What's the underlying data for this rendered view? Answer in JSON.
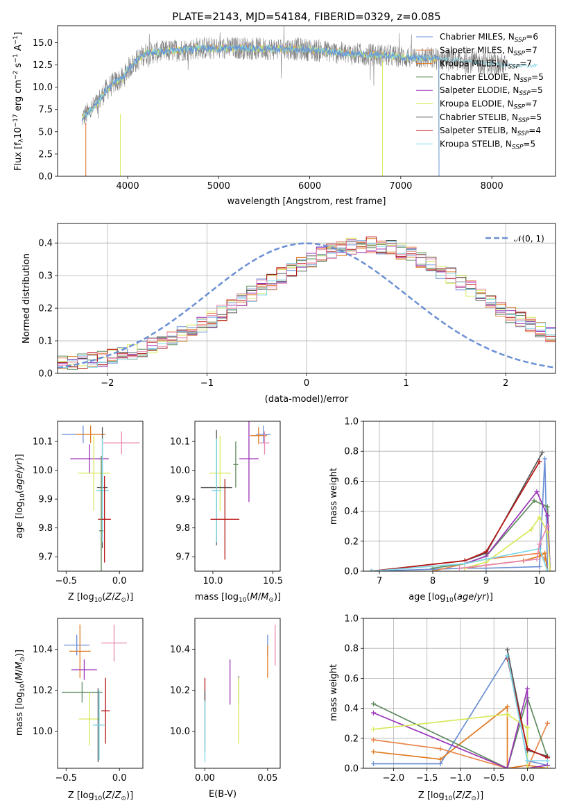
{
  "figure": {
    "title": "PLATE=2143, MJD=54184, FIBERID=0329, z=0.085",
    "colors": {
      "Chabrier MILES": "#6a8fd4",
      "Salpeter MILES": "#e8864a",
      "Kroupa MILES": "#e07b20",
      "Chabrier ELODIE": "#5e8a5e",
      "Salpeter ELODIE": "#9a33b8",
      "Kroupa ELODIE": "#d8e85a",
      "Chabrier STELIB": "#555555",
      "Salpeter STELIB": "#b81414",
      "Kroupa STELIB": "#7fd8e8",
      "data": "#808080",
      "gaussian": "#6a8fd4",
      "extra_pink": "#e889b0"
    }
  },
  "chart_data": [
    {
      "id": "spectrum",
      "type": "line",
      "title": "PLATE=2143, MJD=54184, FIBERID=0329, z=0.085",
      "xlabel": "wavelength [Angstrom, rest frame]",
      "ylabel": "Flux [f_λ 10^-17 erg cm^-2 s^-1 A^-1]",
      "xlim": [
        3230,
        8700
      ],
      "ylim": [
        0,
        16.9
      ],
      "xticks": [
        "4000",
        "5000",
        "6000",
        "7000",
        "8000"
      ],
      "yticks": [
        "0.0",
        "2.5",
        "5.0",
        "7.5",
        "10.0",
        "12.5",
        "15.0"
      ],
      "grid": false,
      "legend_position": "top-right",
      "legend": [
        {
          "name": "Chabrier MILES",
          "nssp": "6"
        },
        {
          "name": "Salpeter MILES",
          "nssp": "7"
        },
        {
          "name": "Kroupa MILES",
          "nssp": "7"
        },
        {
          "name": "Chabrier ELODIE",
          "nssp": "5"
        },
        {
          "name": "Salpeter ELODIE",
          "nssp": "5"
        },
        {
          "name": "Kroupa ELODIE",
          "nssp": "7"
        },
        {
          "name": "Chabrier STELIB",
          "nssp": "5"
        },
        {
          "name": "Salpeter STELIB",
          "nssp": "4"
        },
        {
          "name": "Kroupa STELIB",
          "nssp": "5"
        }
      ],
      "model_continuum": {
        "x": [
          3500,
          3550,
          3650,
          3750,
          3850,
          3950,
          4000,
          4100,
          4200,
          4400,
          4600,
          4800,
          5000,
          5200,
          5500,
          5800,
          6000,
          6200,
          6500,
          6800,
          7000,
          7200,
          7400,
          7600,
          7800,
          8000,
          8200
        ],
        "y": [
          6.5,
          7.0,
          8.0,
          9.5,
          10.5,
          11.0,
          12.0,
          13.0,
          13.8,
          14.0,
          14.2,
          14.4,
          14.3,
          14.4,
          14.3,
          14.3,
          14.2,
          14.0,
          13.7,
          13.6,
          13.4,
          13.3,
          13.2,
          13.0,
          12.8,
          12.6,
          12.4
        ]
      }
    },
    {
      "id": "residual_histogram",
      "type": "line",
      "xlabel": "(data-model)/error",
      "ylabel": "Normed distribution",
      "xlim": [
        -2.5,
        2.5
      ],
      "ylim": [
        0,
        0.46
      ],
      "xticks": [
        "−2",
        "−1",
        "0",
        "1",
        "2"
      ],
      "yticks": [
        "0.0",
        "0.1",
        "0.2",
        "0.3",
        "0.4"
      ],
      "grid": true,
      "legend_position": "top-right",
      "gaussian_label": "𝒩(0, 1)",
      "bin_width": 0.1,
      "bin_start": -2.5,
      "envelope": [
        0.03,
        0.03,
        0.035,
        0.04,
        0.045,
        0.05,
        0.06,
        0.065,
        0.075,
        0.085,
        0.095,
        0.105,
        0.12,
        0.135,
        0.15,
        0.165,
        0.185,
        0.205,
        0.225,
        0.245,
        0.265,
        0.28,
        0.3,
        0.315,
        0.335,
        0.35,
        0.365,
        0.375,
        0.385,
        0.39,
        0.395,
        0.395,
        0.39,
        0.385,
        0.375,
        0.365,
        0.35,
        0.335,
        0.315,
        0.3,
        0.28,
        0.26,
        0.24,
        0.22,
        0.2,
        0.18,
        0.165,
        0.15,
        0.135,
        0.12
      ]
    },
    {
      "id": "age_vs_metallicity",
      "type": "scatter",
      "xlabel": "Z [log10(Z/Z⊙)]",
      "ylabel": "age [log10(age/yr)]",
      "xlim": [
        -0.58,
        0.22
      ],
      "ylim": [
        9.65,
        10.17
      ],
      "xticks": [
        "−0.5",
        "0.0"
      ],
      "yticks": [
        "9.7",
        "9.8",
        "9.9",
        "10.0",
        "10.1"
      ],
      "points": [
        {
          "series": "Chabrier MILES",
          "x": -0.34,
          "y": 10.125,
          "xerr": 0.2,
          "yerr": 0.03
        },
        {
          "series": "Kroupa MILES",
          "x": -0.27,
          "y": 10.125,
          "xerr": 0.14,
          "yerr": 0.03
        },
        {
          "series": "extra_pink",
          "x": 0.02,
          "y": 10.095,
          "xerr": 0.17,
          "yerr": 0.04
        },
        {
          "series": "Salpeter ELODIE",
          "x": -0.28,
          "y": 10.04,
          "xerr": 0.18,
          "yerr": 0.05
        },
        {
          "series": "Kroupa ELODIE",
          "x": -0.24,
          "y": 9.99,
          "xerr": 0.15,
          "yerr": 0.13
        },
        {
          "series": "Chabrier STELIB",
          "x": -0.16,
          "y": 9.94,
          "xerr": 0.05,
          "yerr": 0.21
        },
        {
          "series": "Kroupa STELIB",
          "x": -0.16,
          "y": 9.93,
          "xerr": 0.06,
          "yerr": 0.18
        },
        {
          "series": "Salpeter STELIB",
          "x": -0.14,
          "y": 9.83,
          "xerr": 0.06,
          "yerr": 0.15
        },
        {
          "series": "Chabrier ELODIE",
          "x": -0.17,
          "y": 9.79,
          "xerr": 0.02,
          "yerr": 0.26
        }
      ]
    },
    {
      "id": "age_vs_mass",
      "type": "scatter",
      "xlabel": "mass [log10(M/M⊙)]",
      "ylabel": "",
      "xlim": [
        9.85,
        10.56
      ],
      "ylim": [
        9.65,
        10.17
      ],
      "xticks": [
        "10.0",
        "10.5"
      ],
      "yticks": [
        "9.7",
        "9.8",
        "9.9",
        "10.0",
        "10.1"
      ],
      "points": [
        {
          "series": "Chabrier MILES",
          "x": 10.42,
          "y": 10.125,
          "xerr": 0.06,
          "yerr": 0.03
        },
        {
          "series": "Kroupa MILES",
          "x": 10.38,
          "y": 10.12,
          "xerr": 0.07,
          "yerr": 0.03
        },
        {
          "series": "extra_pink",
          "x": 10.43,
          "y": 10.095,
          "xerr": 0.04,
          "yerr": 0.04
        },
        {
          "series": "Salpeter ELODIE",
          "x": 10.3,
          "y": 10.04,
          "xerr": 0.08,
          "yerr": 0.15
        },
        {
          "series": "Chabrier ELODIE",
          "x": 10.19,
          "y": 10.02,
          "xerr": 0.02,
          "yerr": 0.08
        },
        {
          "series": "Kroupa ELODIE",
          "x": 10.06,
          "y": 9.99,
          "xerr": 0.09,
          "yerr": 0.13
        },
        {
          "series": "Chabrier STELIB",
          "x": 10.03,
          "y": 9.94,
          "xerr": 0.13,
          "yerr": 0.2
        },
        {
          "series": "Kroupa STELIB",
          "x": 10.03,
          "y": 9.93,
          "xerr": 0.04,
          "yerr": 0.18
        },
        {
          "series": "Salpeter STELIB",
          "x": 10.1,
          "y": 9.83,
          "xerr": 0.12,
          "yerr": 0.14
        }
      ]
    },
    {
      "id": "mass_weight_vs_age",
      "type": "line",
      "xlabel": "age [log10(age/yr)]",
      "ylabel": "mass weight",
      "xlim": [
        6.7,
        10.3
      ],
      "ylim": [
        0,
        1.0
      ],
      "xticks": [
        "7",
        "8",
        "9",
        "10"
      ],
      "yticks": [
        "0.0",
        "0.2",
        "0.4",
        "0.6",
        "0.8",
        "1.0"
      ],
      "grid": true,
      "series": [
        {
          "name": "Chabrier MILES",
          "x": [
            6.85,
            8.6,
            9.0,
            10.0,
            10.1,
            10.15
          ],
          "y": [
            0.0,
            0.02,
            0.02,
            0.03,
            0.75,
            0.0
          ]
        },
        {
          "name": "Salpeter MILES",
          "x": [
            8.0,
            8.6,
            9.0,
            10.0,
            10.1
          ],
          "y": [
            0.0,
            0.05,
            0.08,
            0.12,
            0.08
          ]
        },
        {
          "name": "Kroupa MILES",
          "x": [
            8.6,
            9.0,
            9.7,
            10.0,
            10.1,
            10.15
          ],
          "y": [
            0.02,
            0.04,
            0.07,
            0.1,
            0.12,
            0.0
          ]
        },
        {
          "name": "Chabrier ELODIE",
          "x": [
            8.0,
            8.6,
            9.0,
            9.9,
            10.15,
            10.2
          ],
          "y": [
            0.02,
            0.05,
            0.1,
            0.47,
            0.43,
            0.0
          ]
        },
        {
          "name": "Salpeter ELODIE",
          "x": [
            8.6,
            9.0,
            9.95,
            10.15,
            10.2
          ],
          "y": [
            0.05,
            0.1,
            0.53,
            0.37,
            0.0
          ]
        },
        {
          "name": "Kroupa ELODIE",
          "x": [
            8.6,
            9.0,
            9.85,
            10.0,
            10.15,
            10.2
          ],
          "y": [
            0.02,
            0.06,
            0.28,
            0.36,
            0.26,
            0.0
          ]
        },
        {
          "name": "Chabrier STELIB",
          "x": [
            6.85,
            8.6,
            9.0,
            10.05
          ],
          "y": [
            0.0,
            0.07,
            0.12,
            0.79
          ]
        },
        {
          "name": "Salpeter STELIB",
          "x": [
            6.85,
            8.6,
            9.0,
            10.0
          ],
          "y": [
            0.0,
            0.07,
            0.13,
            0.73
          ]
        },
        {
          "name": "Kroupa STELIB",
          "x": [
            6.85,
            8.6,
            9.0,
            10.0,
            10.15
          ],
          "y": [
            0.0,
            0.05,
            0.08,
            0.15,
            0.0
          ]
        },
        {
          "name": "extra_pink",
          "x": [
            8.5,
            9.0,
            9.95,
            10.0,
            10.15
          ],
          "y": [
            0.02,
            0.04,
            0.08,
            0.18,
            0.3
          ]
        }
      ]
    },
    {
      "id": "mass_vs_metallicity",
      "type": "scatter",
      "xlabel": "Z [log10(Z/Z⊙)]",
      "ylabel": "mass [log10(M/M⊙)]",
      "xlim": [
        -0.58,
        0.22
      ],
      "ylim": [
        9.82,
        10.55
      ],
      "xticks": [
        "−0.5",
        "0.0"
      ],
      "yticks": [
        "10.0",
        "10.2",
        "10.4"
      ],
      "points": [
        {
          "series": "Chabrier MILES",
          "x": -0.4,
          "y": 10.42,
          "xerr": 0.12,
          "yerr": 0.05
        },
        {
          "series": "extra_pink",
          "x": -0.05,
          "y": 10.43,
          "xerr": 0.12,
          "yerr": 0.09
        },
        {
          "series": "Kroupa MILES",
          "x": -0.37,
          "y": 10.39,
          "xerr": 0.1,
          "yerr": 0.13
        },
        {
          "series": "Salpeter ELODIE",
          "x": -0.33,
          "y": 10.3,
          "xerr": 0.12,
          "yerr": 0.05
        },
        {
          "series": "Chabrier ELODIE",
          "x": -0.35,
          "y": 10.19,
          "xerr": 0.19,
          "yerr": 0.05
        },
        {
          "series": "Salpeter STELIB",
          "x": -0.13,
          "y": 10.1,
          "xerr": 0.04,
          "yerr": 0.16
        },
        {
          "series": "Kroupa ELODIE",
          "x": -0.28,
          "y": 10.06,
          "xerr": 0.1,
          "yerr": 0.13
        },
        {
          "series": "Chabrier STELIB",
          "x": -0.2,
          "y": 10.03,
          "xerr": 0.04,
          "yerr": 0.18
        },
        {
          "series": "Kroupa STELIB",
          "x": -0.19,
          "y": 10.03,
          "xerr": 0.06,
          "yerr": 0.17
        }
      ]
    },
    {
      "id": "mass_vs_ebv",
      "type": "scatter",
      "xlabel": "E(B-V)",
      "ylabel": "",
      "xlim": [
        -0.008,
        0.06
      ],
      "ylim": [
        9.82,
        10.55
      ],
      "xticks": [
        "0.00",
        "0.05"
      ],
      "yticks": [
        "10.0",
        "10.2",
        "10.4"
      ],
      "points": [
        {
          "series": "Chabrier MILES",
          "x": 0.05,
          "y": 10.42,
          "xerr": 0.0,
          "yerr": 0.05
        },
        {
          "series": "extra_pink",
          "x": 0.056,
          "y": 10.42,
          "xerr": 0.0,
          "yerr": 0.1
        },
        {
          "series": "Kroupa MILES",
          "x": 0.05,
          "y": 10.34,
          "xerr": 0.0,
          "yerr": 0.08
        },
        {
          "series": "Salpeter ELODIE",
          "x": 0.02,
          "y": 10.24,
          "xerr": 0.0,
          "yerr": 0.11
        },
        {
          "series": "Chabrier ELODIE",
          "x": 0.027,
          "y": 10.2,
          "xerr": 0.0,
          "yerr": 0.07
        },
        {
          "series": "Kroupa ELODIE",
          "x": 0.027,
          "y": 10.1,
          "xerr": 0.0,
          "yerr": 0.16
        },
        {
          "series": "Salpeter STELIB",
          "x": 0.0,
          "y": 10.2,
          "xerr": 0.0,
          "yerr": 0.06
        },
        {
          "series": "Chabrier STELIB",
          "x": 0.0,
          "y": 10.05,
          "xerr": 0.0,
          "yerr": 0.15
        },
        {
          "series": "Kroupa STELIB",
          "x": 0.0,
          "y": 10.0,
          "xerr": 0.0,
          "yerr": 0.15
        }
      ]
    },
    {
      "id": "mass_weight_vs_metallicity",
      "type": "line",
      "xlabel": "Z [log10(Z/Z⊙)]",
      "ylabel": "mass weight",
      "xlim": [
        -2.45,
        0.42
      ],
      "ylim": [
        0,
        1.0
      ],
      "xticks": [
        "−2.0",
        "−1.5",
        "−1.0",
        "−0.5",
        "0.0"
      ],
      "yticks": [
        "0.0",
        "0.2",
        "0.4",
        "0.6",
        "0.8",
        "1.0"
      ],
      "grid": true,
      "series": [
        {
          "name": "Chabrier MILES",
          "x": [
            -2.3,
            -1.3,
            -0.3,
            0.0,
            0.3
          ],
          "y": [
            0.03,
            0.03,
            0.75,
            0.05,
            0.02
          ]
        },
        {
          "name": "Salpeter MILES",
          "x": [
            -2.3,
            -1.3,
            -0.3,
            0.0,
            0.3
          ],
          "y": [
            0.19,
            0.13,
            0.0,
            0.0,
            0.3
          ]
        },
        {
          "name": "Kroupa MILES",
          "x": [
            -2.3,
            -1.3,
            -0.3,
            -0.3,
            0.0,
            0.3
          ],
          "y": [
            0.11,
            0.06,
            0.41,
            0.0,
            0.02,
            0.0
          ]
        },
        {
          "name": "Chabrier ELODIE",
          "x": [
            -2.3,
            -0.3,
            0.0,
            0.3
          ],
          "y": [
            0.43,
            0.0,
            0.47,
            0.07
          ]
        },
        {
          "name": "Salpeter ELODIE",
          "x": [
            -2.3,
            -0.3,
            0.0,
            0.0,
            0.3
          ],
          "y": [
            0.37,
            0.0,
            0.53,
            0.0,
            0.02
          ]
        },
        {
          "name": "Kroupa ELODIE",
          "x": [
            -2.3,
            -0.3,
            0.0,
            0.0,
            0.3
          ],
          "y": [
            0.26,
            0.36,
            0.27,
            0.0,
            0.0
          ]
        },
        {
          "name": "Chabrier STELIB",
          "x": [
            -0.3,
            0.0,
            0.3
          ],
          "y": [
            0.79,
            0.12,
            0.08
          ]
        },
        {
          "name": "Salpeter STELIB",
          "x": [
            -0.3,
            0.0,
            0.3
          ],
          "y": [
            0.73,
            0.13,
            0.07
          ]
        },
        {
          "name": "Kroupa STELIB",
          "x": [
            -0.3,
            0.0,
            0.3
          ],
          "y": [
            0.75,
            0.05,
            0.05
          ]
        }
      ]
    }
  ]
}
